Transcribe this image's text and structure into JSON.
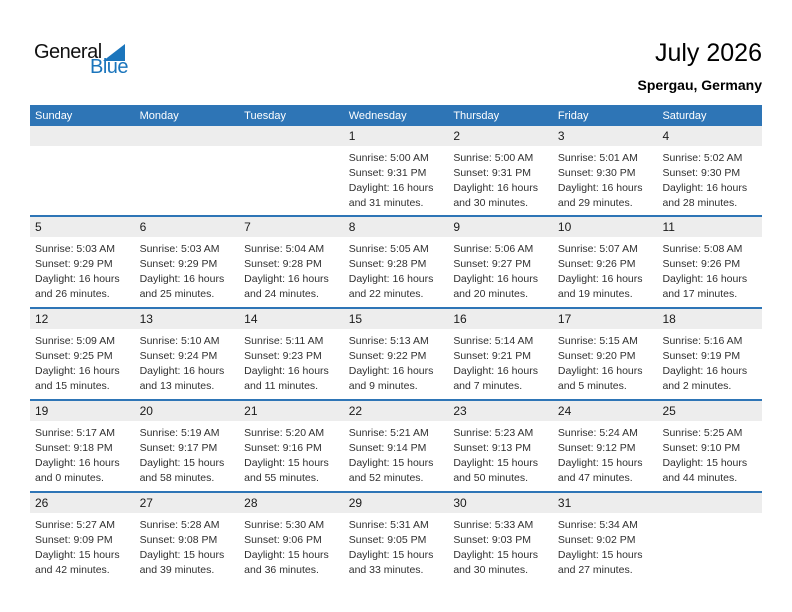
{
  "logo": {
    "black_text": "General",
    "blue_text": "Blue"
  },
  "header": {
    "title": "July 2026",
    "location": "Spergau, Germany"
  },
  "weekday_headers": [
    "Sunday",
    "Monday",
    "Tuesday",
    "Wednesday",
    "Thursday",
    "Friday",
    "Saturday"
  ],
  "colors": {
    "header_bg": "#2E75B6",
    "week_separator": "#2E75B6",
    "day_band_bg": "#EDEDED",
    "logo_blue": "#1B75BC"
  },
  "weeks": [
    [
      null,
      null,
      null,
      {
        "day": "1",
        "lines": [
          "Sunrise: 5:00 AM",
          "Sunset: 9:31 PM",
          "Daylight: 16 hours",
          "and 31 minutes."
        ]
      },
      {
        "day": "2",
        "lines": [
          "Sunrise: 5:00 AM",
          "Sunset: 9:31 PM",
          "Daylight: 16 hours",
          "and 30 minutes."
        ]
      },
      {
        "day": "3",
        "lines": [
          "Sunrise: 5:01 AM",
          "Sunset: 9:30 PM",
          "Daylight: 16 hours",
          "and 29 minutes."
        ]
      },
      {
        "day": "4",
        "lines": [
          "Sunrise: 5:02 AM",
          "Sunset: 9:30 PM",
          "Daylight: 16 hours",
          "and 28 minutes."
        ]
      }
    ],
    [
      {
        "day": "5",
        "lines": [
          "Sunrise: 5:03 AM",
          "Sunset: 9:29 PM",
          "Daylight: 16 hours",
          "and 26 minutes."
        ]
      },
      {
        "day": "6",
        "lines": [
          "Sunrise: 5:03 AM",
          "Sunset: 9:29 PM",
          "Daylight: 16 hours",
          "and 25 minutes."
        ]
      },
      {
        "day": "7",
        "lines": [
          "Sunrise: 5:04 AM",
          "Sunset: 9:28 PM",
          "Daylight: 16 hours",
          "and 24 minutes."
        ]
      },
      {
        "day": "8",
        "lines": [
          "Sunrise: 5:05 AM",
          "Sunset: 9:28 PM",
          "Daylight: 16 hours",
          "and 22 minutes."
        ]
      },
      {
        "day": "9",
        "lines": [
          "Sunrise: 5:06 AM",
          "Sunset: 9:27 PM",
          "Daylight: 16 hours",
          "and 20 minutes."
        ]
      },
      {
        "day": "10",
        "lines": [
          "Sunrise: 5:07 AM",
          "Sunset: 9:26 PM",
          "Daylight: 16 hours",
          "and 19 minutes."
        ]
      },
      {
        "day": "11",
        "lines": [
          "Sunrise: 5:08 AM",
          "Sunset: 9:26 PM",
          "Daylight: 16 hours",
          "and 17 minutes."
        ]
      }
    ],
    [
      {
        "day": "12",
        "lines": [
          "Sunrise: 5:09 AM",
          "Sunset: 9:25 PM",
          "Daylight: 16 hours",
          "and 15 minutes."
        ]
      },
      {
        "day": "13",
        "lines": [
          "Sunrise: 5:10 AM",
          "Sunset: 9:24 PM",
          "Daylight: 16 hours",
          "and 13 minutes."
        ]
      },
      {
        "day": "14",
        "lines": [
          "Sunrise: 5:11 AM",
          "Sunset: 9:23 PM",
          "Daylight: 16 hours",
          "and 11 minutes."
        ]
      },
      {
        "day": "15",
        "lines": [
          "Sunrise: 5:13 AM",
          "Sunset: 9:22 PM",
          "Daylight: 16 hours",
          "and 9 minutes."
        ]
      },
      {
        "day": "16",
        "lines": [
          "Sunrise: 5:14 AM",
          "Sunset: 9:21 PM",
          "Daylight: 16 hours",
          "and 7 minutes."
        ]
      },
      {
        "day": "17",
        "lines": [
          "Sunrise: 5:15 AM",
          "Sunset: 9:20 PM",
          "Daylight: 16 hours",
          "and 5 minutes."
        ]
      },
      {
        "day": "18",
        "lines": [
          "Sunrise: 5:16 AM",
          "Sunset: 9:19 PM",
          "Daylight: 16 hours",
          "and 2 minutes."
        ]
      }
    ],
    [
      {
        "day": "19",
        "lines": [
          "Sunrise: 5:17 AM",
          "Sunset: 9:18 PM",
          "Daylight: 16 hours",
          "and 0 minutes."
        ]
      },
      {
        "day": "20",
        "lines": [
          "Sunrise: 5:19 AM",
          "Sunset: 9:17 PM",
          "Daylight: 15 hours",
          "and 58 minutes."
        ]
      },
      {
        "day": "21",
        "lines": [
          "Sunrise: 5:20 AM",
          "Sunset: 9:16 PM",
          "Daylight: 15 hours",
          "and 55 minutes."
        ]
      },
      {
        "day": "22",
        "lines": [
          "Sunrise: 5:21 AM",
          "Sunset: 9:14 PM",
          "Daylight: 15 hours",
          "and 52 minutes."
        ]
      },
      {
        "day": "23",
        "lines": [
          "Sunrise: 5:23 AM",
          "Sunset: 9:13 PM",
          "Daylight: 15 hours",
          "and 50 minutes."
        ]
      },
      {
        "day": "24",
        "lines": [
          "Sunrise: 5:24 AM",
          "Sunset: 9:12 PM",
          "Daylight: 15 hours",
          "and 47 minutes."
        ]
      },
      {
        "day": "25",
        "lines": [
          "Sunrise: 5:25 AM",
          "Sunset: 9:10 PM",
          "Daylight: 15 hours",
          "and 44 minutes."
        ]
      }
    ],
    [
      {
        "day": "26",
        "lines": [
          "Sunrise: 5:27 AM",
          "Sunset: 9:09 PM",
          "Daylight: 15 hours",
          "and 42 minutes."
        ]
      },
      {
        "day": "27",
        "lines": [
          "Sunrise: 5:28 AM",
          "Sunset: 9:08 PM",
          "Daylight: 15 hours",
          "and 39 minutes."
        ]
      },
      {
        "day": "28",
        "lines": [
          "Sunrise: 5:30 AM",
          "Sunset: 9:06 PM",
          "Daylight: 15 hours",
          "and 36 minutes."
        ]
      },
      {
        "day": "29",
        "lines": [
          "Sunrise: 5:31 AM",
          "Sunset: 9:05 PM",
          "Daylight: 15 hours",
          "and 33 minutes."
        ]
      },
      {
        "day": "30",
        "lines": [
          "Sunrise: 5:33 AM",
          "Sunset: 9:03 PM",
          "Daylight: 15 hours",
          "and 30 minutes."
        ]
      },
      {
        "day": "31",
        "lines": [
          "Sunrise: 5:34 AM",
          "Sunset: 9:02 PM",
          "Daylight: 15 hours",
          "and 27 minutes."
        ]
      },
      null
    ]
  ]
}
